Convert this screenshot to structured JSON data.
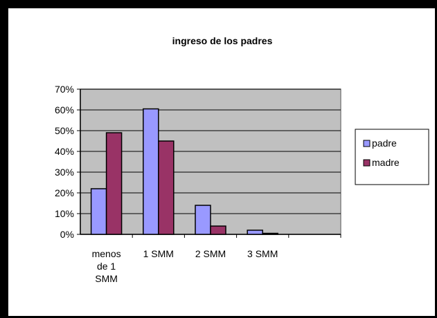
{
  "chart_data": {
    "type": "bar",
    "title": "ingreso de los padres",
    "categories": [
      [
        "menos",
        "de 1",
        "SMM"
      ],
      [
        "1 SMM"
      ],
      [
        "2 SMM"
      ],
      [
        "3 SMM"
      ],
      [
        ""
      ]
    ],
    "y_ticks": [
      "0%",
      "10%",
      "20%",
      "30%",
      "40%",
      "50%",
      "60%",
      "70%"
    ],
    "ylim": [
      0,
      0.7
    ],
    "grid": true,
    "legend_position": "right",
    "series": [
      {
        "name": "padre",
        "color": "#9999ff",
        "values": [
          0.22,
          0.605,
          0.14,
          0.02,
          0
        ]
      },
      {
        "name": "madre",
        "color": "#993366",
        "values": [
          0.49,
          0.45,
          0.04,
          0.005,
          0
        ]
      }
    ],
    "plot_background": "#c0c0c0"
  }
}
